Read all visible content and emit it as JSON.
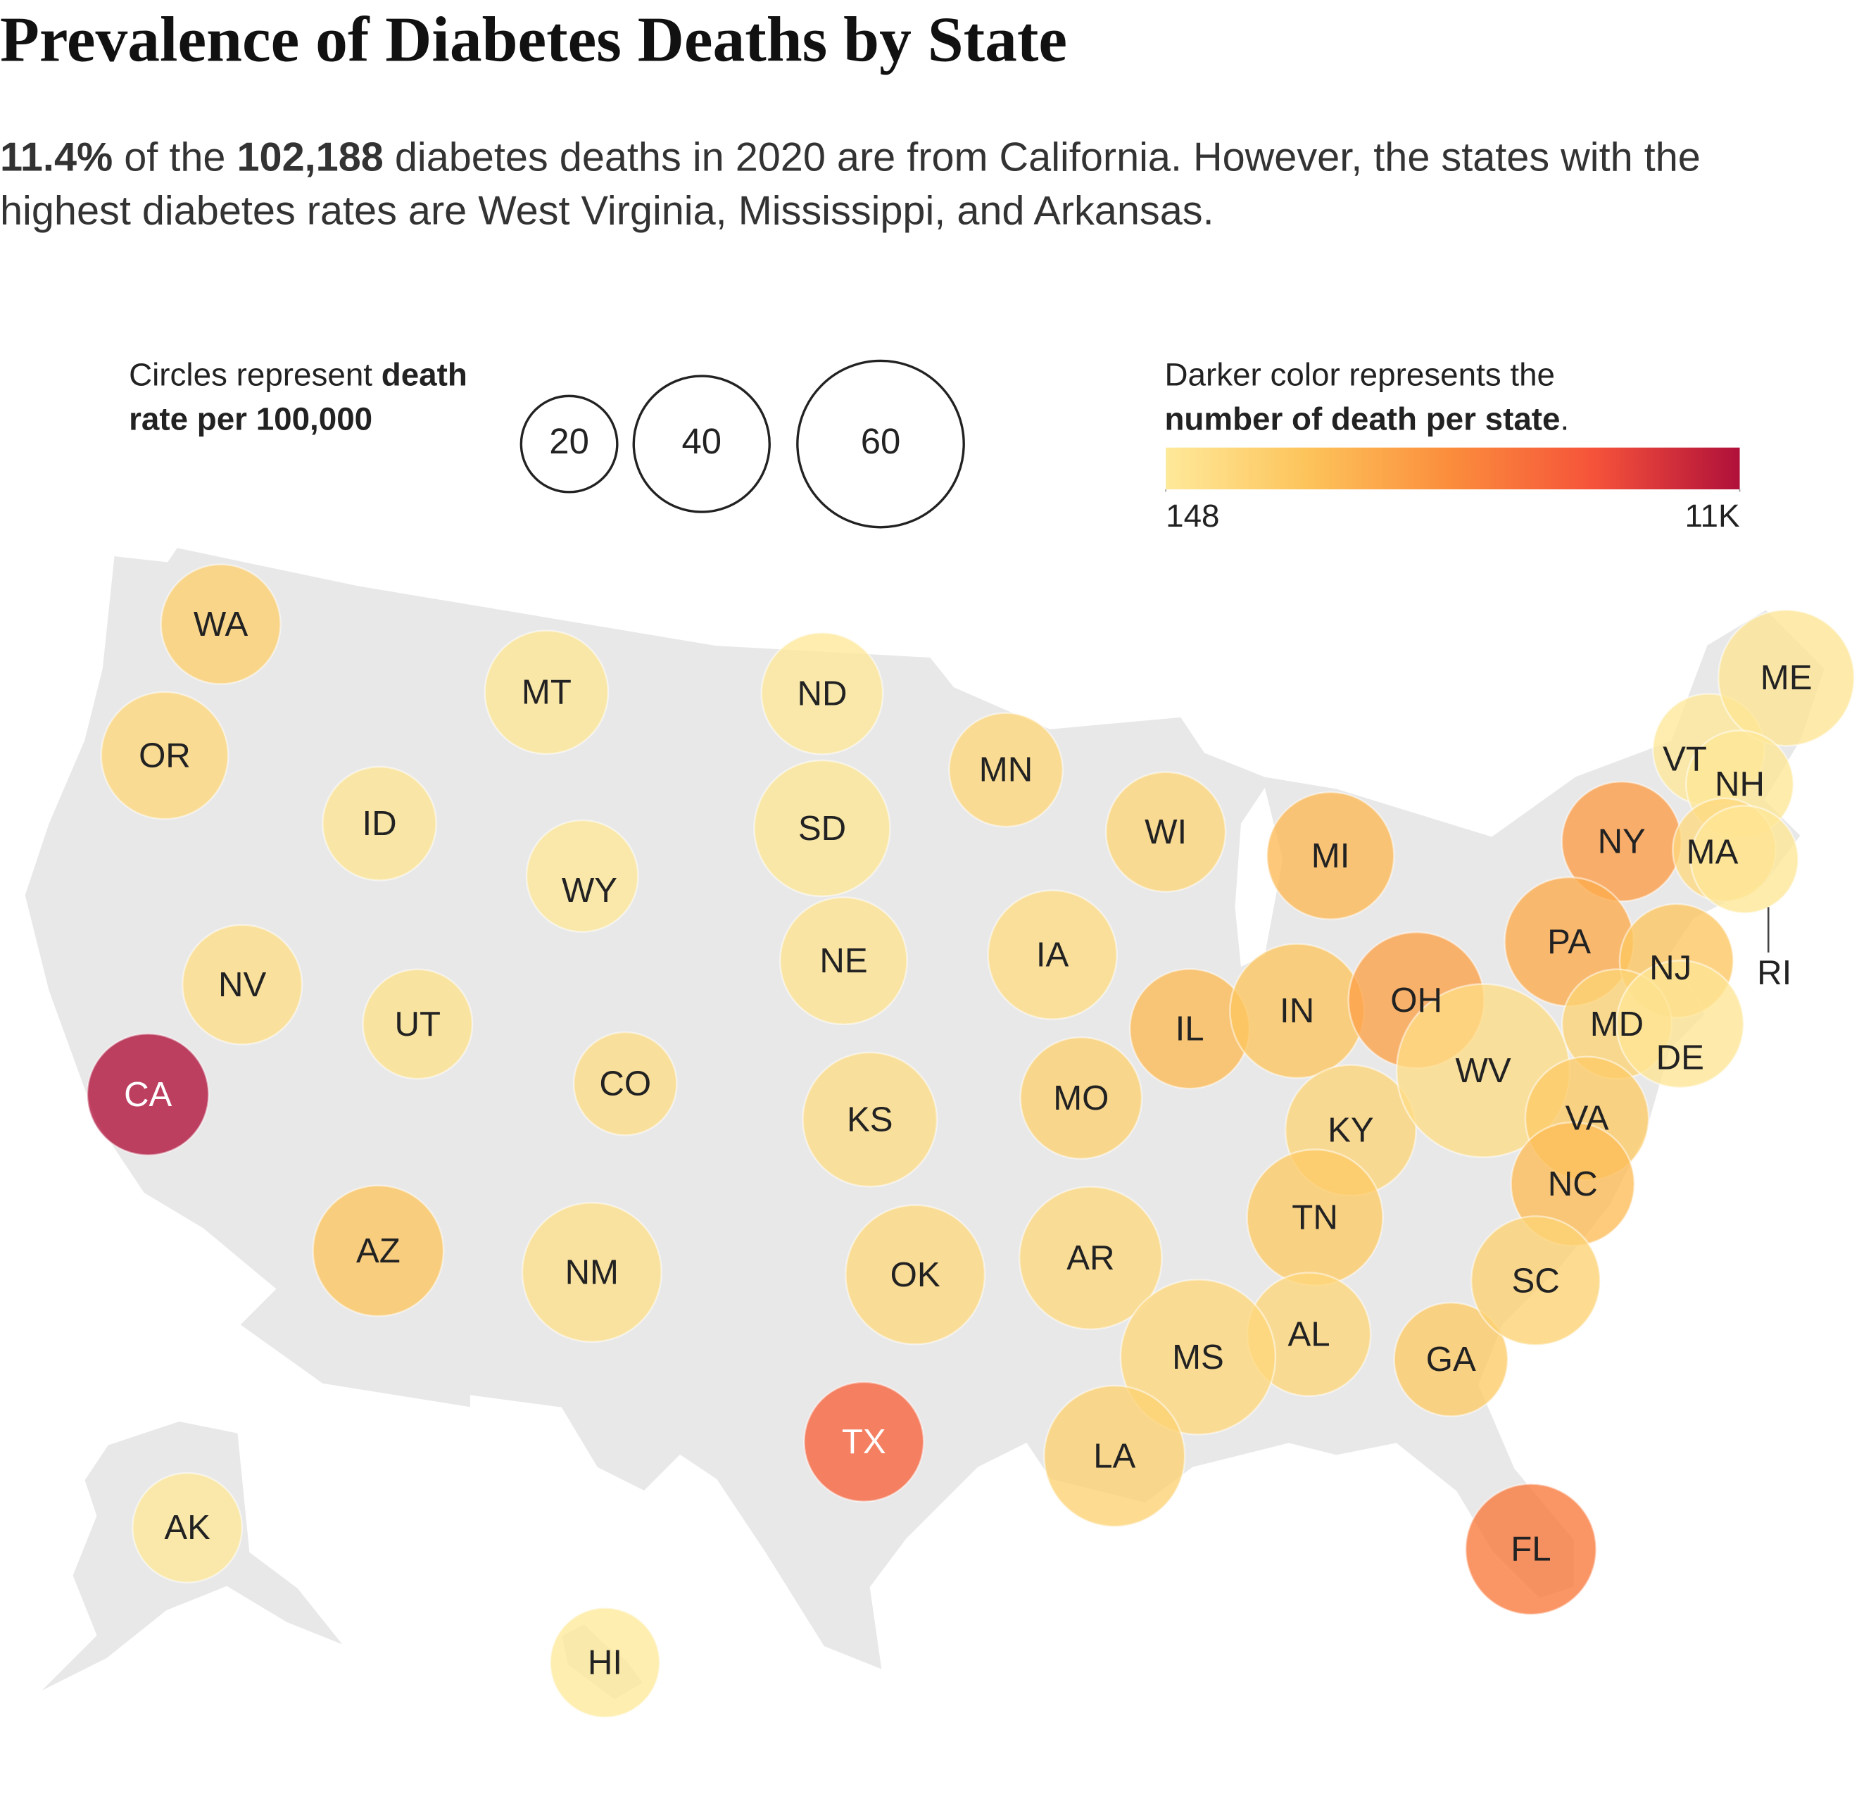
{
  "chart_data": {
    "type": "bubble_map",
    "title": "Prevalence of Diabetes Deaths by State",
    "subtitle": [
      {
        "text": "11.4%",
        "bold": true
      },
      {
        "text": " of the ",
        "bold": false
      },
      {
        "text": "102,188",
        "bold": true
      },
      {
        "text": " diabetes deaths in 2020 are from California. However, the states with the highest diabetes rates are West Virginia, Mississippi, and Arkansas.",
        "bold": false
      }
    ],
    "size_legend": {
      "text": [
        {
          "text": "Circles represent ",
          "bold": false
        },
        {
          "text": "death rate per 100,000",
          "bold": true
        }
      ],
      "values": [
        20,
        40,
        60
      ]
    },
    "color_legend": {
      "text": [
        {
          "text": "Darker color represents the ",
          "bold": false
        },
        {
          "text": "number of death per state",
          "bold": true
        },
        {
          "text": ".",
          "bold": false
        }
      ],
      "clim": [
        148,
        11000
      ],
      "ticks": [
        148,
        {
          "value": 11000,
          "label": "11K"
        }
      ],
      "colors": [
        "#fee99a",
        "#fdc35a",
        "#fb8c3c",
        "#f5523a",
        "#b0103a"
      ]
    },
    "states": [
      {
        "abbr": "WA",
        "rate": 31,
        "deaths": 2000
      },
      {
        "abbr": "OR",
        "rate": 35,
        "deaths": 1400
      },
      {
        "abbr": "MT",
        "rate": 33,
        "deaths": 300
      },
      {
        "abbr": "ND",
        "rate": 32,
        "deaths": 250
      },
      {
        "abbr": "MN",
        "rate": 28,
        "deaths": 1400
      },
      {
        "abbr": "ID",
        "rate": 28,
        "deaths": 450
      },
      {
        "abbr": "SD",
        "rate": 40,
        "deaths": 300
      },
      {
        "abbr": "WY",
        "rate": 27,
        "deaths": 200
      },
      {
        "abbr": "WI",
        "rate": 31,
        "deaths": 1500
      },
      {
        "abbr": "MI",
        "rate": 35,
        "deaths": 3400
      },
      {
        "abbr": "NY",
        "rate": 31,
        "deaths": 4700
      },
      {
        "abbr": "VT",
        "rate": 27,
        "deaths": 200
      },
      {
        "abbr": "ME",
        "rate": 40,
        "deaths": 400
      },
      {
        "abbr": "NH",
        "rate": 25,
        "deaths": 300
      },
      {
        "abbr": "MA",
        "rate": 23,
        "deaths": 1300
      },
      {
        "abbr": "RI",
        "rate": 25,
        "deaths": 300
      },
      {
        "abbr": "NV",
        "rate": 31,
        "deaths": 900
      },
      {
        "abbr": "UT",
        "rate": 26,
        "deaths": 700
      },
      {
        "abbr": "NE",
        "rate": 35,
        "deaths": 600
      },
      {
        "abbr": "IA",
        "rate": 36,
        "deaths": 1100
      },
      {
        "abbr": "IL",
        "rate": 31,
        "deaths": 3300
      },
      {
        "abbr": "IN",
        "rate": 39,
        "deaths": 2600
      },
      {
        "abbr": "OH",
        "rate": 40,
        "deaths": 4500
      },
      {
        "abbr": "PA",
        "rate": 36,
        "deaths": 4000
      },
      {
        "abbr": "NJ",
        "rate": 28,
        "deaths": 2600
      },
      {
        "abbr": "CA",
        "rate": 32,
        "deaths": 11649
      },
      {
        "abbr": "CO",
        "rate": 23,
        "deaths": 1000
      },
      {
        "abbr": "KS",
        "rate": 39,
        "deaths": 1000
      },
      {
        "abbr": "MO",
        "rate": 32,
        "deaths": 1800
      },
      {
        "abbr": "KY",
        "rate": 37,
        "deaths": 1600
      },
      {
        "abbr": "WV",
        "rate": 65,
        "deaths": 1000
      },
      {
        "abbr": "MD",
        "rate": 26,
        "deaths": 1700
      },
      {
        "abbr": "DE",
        "rate": 35,
        "deaths": 350
      },
      {
        "abbr": "VA",
        "rate": 33,
        "deaths": 2300
      },
      {
        "abbr": "AZ",
        "rate": 37,
        "deaths": 2600
      },
      {
        "abbr": "NM",
        "rate": 42,
        "deaths": 800
      },
      {
        "abbr": "OK",
        "rate": 42,
        "deaths": 1300
      },
      {
        "abbr": "AR",
        "rate": 44,
        "deaths": 1300
      },
      {
        "abbr": "TN",
        "rate": 40,
        "deaths": 2300
      },
      {
        "abbr": "NC",
        "rate": 33,
        "deaths": 3200
      },
      {
        "abbr": "TX",
        "rate": 31,
        "deaths": 7600
      },
      {
        "abbr": "AL",
        "rate": 33,
        "deaths": 1500
      },
      {
        "abbr": "MS",
        "rate": 52,
        "deaths": 1400
      },
      {
        "abbr": "GA",
        "rate": 28,
        "deaths": 2300
      },
      {
        "abbr": "SC",
        "rate": 36,
        "deaths": 1800
      },
      {
        "abbr": "LA",
        "rate": 43,
        "deaths": 1800
      },
      {
        "abbr": "FL",
        "rate": 37,
        "deaths": 6500
      },
      {
        "abbr": "AK",
        "rate": 26,
        "deaths": 200
      },
      {
        "abbr": "HI",
        "rate": 26,
        "deaths": 148
      }
    ]
  }
}
